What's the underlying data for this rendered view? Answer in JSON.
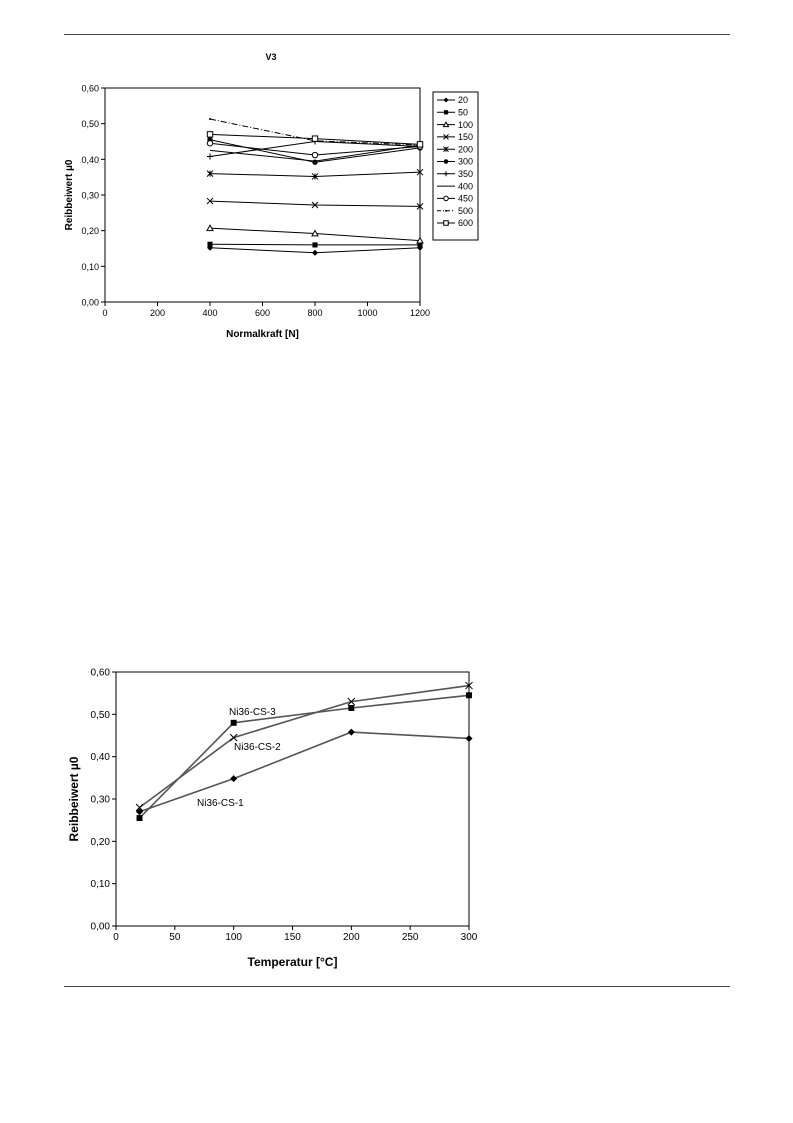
{
  "chart_data": [
    {
      "type": "line",
      "title": "V3",
      "xlabel": "Normalkraft [N]",
      "ylabel": "Reibbeiwert µ0",
      "xlim": [
        0,
        1200
      ],
      "ylim": [
        0,
        0.6
      ],
      "x_ticks": [
        "0",
        "200",
        "400",
        "600",
        "800",
        "1000",
        "1200"
      ],
      "y_ticks": [
        "0,00",
        "0,10",
        "0,20",
        "0,30",
        "0,40",
        "0,50",
        "0,60"
      ],
      "grid": false,
      "legend_position": "right",
      "x": [
        400,
        800,
        1200
      ],
      "series": [
        {
          "name": "20",
          "marker": "diamond",
          "values": [
            0.152,
            0.138,
            0.152
          ]
        },
        {
          "name": "50",
          "marker": "square",
          "values": [
            0.162,
            0.16,
            0.16
          ]
        },
        {
          "name": "100",
          "marker": "triangle",
          "values": [
            0.207,
            0.192,
            0.172
          ]
        },
        {
          "name": "150",
          "marker": "x",
          "values": [
            0.283,
            0.272,
            0.268
          ]
        },
        {
          "name": "200",
          "marker": "asterisk",
          "values": [
            0.36,
            0.352,
            0.364
          ]
        },
        {
          "name": "300",
          "marker": "circle",
          "values": [
            0.455,
            0.392,
            0.432
          ]
        },
        {
          "name": "350",
          "marker": "plus",
          "values": [
            0.408,
            0.45,
            0.436
          ]
        },
        {
          "name": "400",
          "marker": "none",
          "values": [
            0.425,
            0.395,
            0.44
          ]
        },
        {
          "name": "450",
          "marker": "circle-open",
          "values": [
            0.445,
            0.412,
            0.436
          ]
        },
        {
          "name": "500",
          "marker": "dot",
          "values": [
            0.513,
            0.452,
            0.44
          ]
        },
        {
          "name": "600",
          "marker": "square-open",
          "values": [
            0.47,
            0.458,
            0.442
          ]
        }
      ]
    },
    {
      "type": "line",
      "title": "",
      "xlabel": "Temperatur [°C]",
      "ylabel": "Reibbeiwert µ0",
      "xlim": [
        0,
        300
      ],
      "ylim": [
        0,
        0.6
      ],
      "x_ticks": [
        "0",
        "50",
        "100",
        "150",
        "200",
        "250",
        "300"
      ],
      "y_ticks": [
        "0,00",
        "0,10",
        "0,20",
        "0,30",
        "0,40",
        "0,50",
        "0,60"
      ],
      "grid": false,
      "x": [
        20,
        100,
        200,
        300
      ],
      "series": [
        {
          "name": "Ni36-CS-1",
          "marker": "diamond",
          "values": [
            0.27,
            0.348,
            0.458,
            0.443
          ]
        },
        {
          "name": "Ni36-CS-2",
          "marker": "x",
          "values": [
            0.28,
            0.445,
            0.53,
            0.568
          ]
        },
        {
          "name": "Ni36-CS-3",
          "marker": "square",
          "values": [
            0.255,
            0.48,
            0.515,
            0.545
          ]
        }
      ]
    }
  ]
}
